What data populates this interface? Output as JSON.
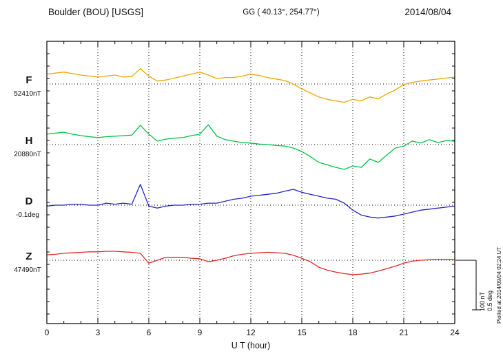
{
  "header": {
    "station": "Boulder (BOU)  [USGS]",
    "coords": "GG ( 40.13°, 254.77°)",
    "date": "2014/08/04"
  },
  "axis": {
    "xlabel": "U T (hour)"
  },
  "scalebar": {
    "label_nt": "100 nT",
    "label_deg": "0.5 deg"
  },
  "side_note": "Plotted at 2014/09/04 02:24 UT",
  "chart_data": {
    "type": "line",
    "title": "Boulder (BOU) [USGS] magnetogram",
    "date": "2014/08/04",
    "xlabel": "U T (hour)",
    "x_range_hours": [
      0,
      24
    ],
    "x_tick_hours": [
      0,
      3,
      6,
      9,
      12,
      15,
      18,
      21,
      24
    ],
    "grid": "dotted baselines and dotted vertical lines every 3 hours",
    "scale": {
      "nT_per_division": 100,
      "deg_per_division": 0.5
    },
    "x_hours": [
      0,
      0.5,
      1,
      1.5,
      2,
      2.5,
      3,
      3.5,
      4,
      4.5,
      5,
      5.5,
      6,
      6.5,
      7,
      7.5,
      8,
      8.5,
      9,
      9.5,
      10,
      10.5,
      11,
      11.5,
      12,
      12.5,
      13,
      13.5,
      14,
      14.5,
      15,
      15.5,
      16,
      16.5,
      17,
      17.5,
      18,
      18.5,
      19,
      19.5,
      20,
      20.5,
      21,
      21.5,
      22,
      22.5,
      23,
      23.5,
      24
    ],
    "series": [
      {
        "name": "F",
        "units": "nT",
        "baseline": 52410,
        "baseline_label": "52410nT",
        "color": "#f0a500",
        "offsets": [
          20,
          22,
          24,
          21,
          18,
          16,
          14,
          16,
          18,
          14,
          15,
          31,
          16,
          6,
          8,
          12,
          16,
          20,
          24,
          18,
          11,
          13,
          13,
          16,
          20,
          17,
          13,
          10,
          7,
          0,
          -10,
          -18,
          -26,
          -31,
          -34,
          -37,
          -31,
          -34,
          -26,
          -30,
          -20,
          -12,
          -1,
          3,
          6,
          8,
          10,
          12,
          14
        ]
      },
      {
        "name": "H",
        "units": "nT",
        "baseline": 20880,
        "baseline_label": "20880nT",
        "color": "#00c344",
        "offsets": [
          21,
          23,
          25,
          21,
          18,
          16,
          14,
          16,
          17,
          18,
          19,
          39,
          21,
          7,
          11,
          13,
          14,
          18,
          21,
          40,
          17,
          10,
          7,
          4,
          3,
          1,
          0,
          -2,
          -3,
          -7,
          -14,
          -24,
          -36,
          -41,
          -46,
          -50,
          -43,
          -46,
          -29,
          -36,
          -21,
          -7,
          -3,
          7,
          3,
          10,
          4,
          8,
          7
        ]
      },
      {
        "name": "D",
        "units": "deg",
        "baseline": -0.1,
        "baseline_label": "-0.1deg",
        "color": "#2222cc",
        "offsets": [
          -0.01,
          0,
          0,
          0.01,
          0.01,
          0,
          0,
          0.02,
          0.01,
          0.02,
          0.01,
          0.21,
          -0.01,
          -0.03,
          -0.01,
          0,
          0,
          0.01,
          0.01,
          0.02,
          0.02,
          0.04,
          0.06,
          0.07,
          0.09,
          0.1,
          0.11,
          0.12,
          0.14,
          0.16,
          0.13,
          0.11,
          0.09,
          0.07,
          0.06,
          0.02,
          -0.05,
          -0.1,
          -0.12,
          -0.13,
          -0.12,
          -0.11,
          -0.09,
          -0.07,
          -0.05,
          -0.04,
          -0.03,
          -0.02,
          -0.01
        ]
      },
      {
        "name": "Z",
        "units": "nT",
        "baseline": 47490,
        "baseline_label": "47490nT",
        "color": "#e02828",
        "offsets": [
          11,
          12,
          14,
          15,
          16,
          17,
          17,
          18,
          18,
          17,
          16,
          14,
          -6,
          0,
          6,
          6,
          6,
          4,
          3,
          -3,
          0,
          4,
          9,
          12,
          14,
          15,
          16,
          15,
          14,
          10,
          4,
          -3,
          -14,
          -20,
          -24,
          -27,
          -29,
          -28,
          -26,
          -22,
          -17,
          -12,
          -6,
          -2,
          0,
          1,
          2,
          2,
          1
        ]
      }
    ]
  }
}
